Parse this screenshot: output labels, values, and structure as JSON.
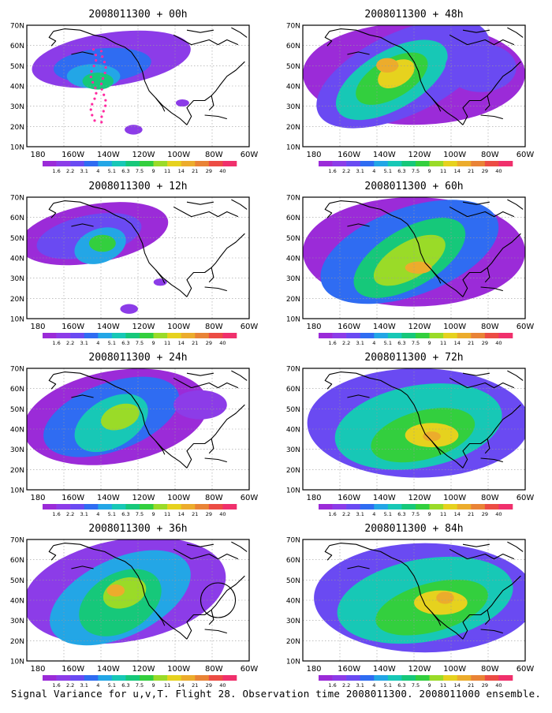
{
  "caption": "Signal Variance for u,v,T. Flight 28. Observation time 2008011300. 2008011000 ensemble.",
  "lat_labels": [
    "70N",
    "60N",
    "50N",
    "40N",
    "30N",
    "20N",
    "10N"
  ],
  "lon_labels": [
    "180",
    "160W",
    "140W",
    "120W",
    "100W",
    "80W",
    "60W"
  ],
  "colorbar": {
    "labels": [
      "1.6",
      "2.2",
      "3.1",
      "4",
      "5.1",
      "6.3",
      "7.5",
      "9",
      "11",
      "14",
      "21",
      "29",
      "40"
    ],
    "colors": [
      "#9b2bd8",
      "#8c3ce8",
      "#6a4af2",
      "#2f6cf2",
      "#23a6e6",
      "#17c8b6",
      "#16c87a",
      "#33cf3e",
      "#9adb28",
      "#e6d21e",
      "#ecac2c",
      "#e98336",
      "#ec4c44",
      "#f0306c"
    ]
  },
  "panels": [
    {
      "title": "2008011300 + 00h",
      "lead_hours": 0
    },
    {
      "title": "2008011300 + 48h",
      "lead_hours": 48
    },
    {
      "title": "2008011300 + 12h",
      "lead_hours": 12
    },
    {
      "title": "2008011300 + 60h",
      "lead_hours": 60
    },
    {
      "title": "2008011300 + 24h",
      "lead_hours": 24
    },
    {
      "title": "2008011300 + 72h",
      "lead_hours": 72
    },
    {
      "title": "2008011300 + 36h",
      "lead_hours": 36
    },
    {
      "title": "2008011300 + 84h",
      "lead_hours": 84
    }
  ]
}
